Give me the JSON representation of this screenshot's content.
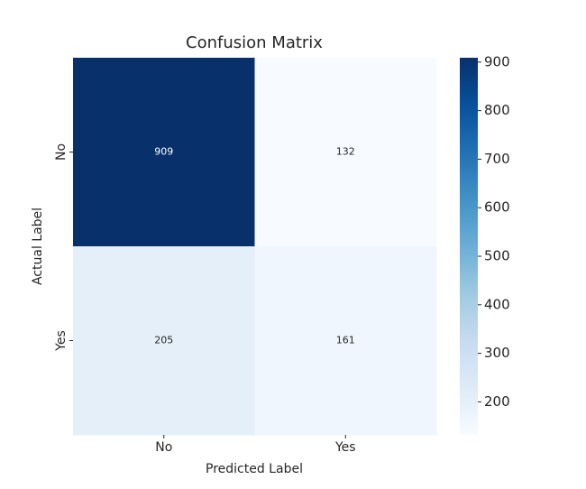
{
  "chart_data": {
    "type": "heatmap",
    "title": "Confusion Matrix",
    "xlabel": "Predicted Label",
    "ylabel": "Actual Label",
    "x_categories": [
      "No",
      "Yes"
    ],
    "y_categories": [
      "No",
      "Yes"
    ],
    "values": [
      [
        909,
        132
      ],
      [
        205,
        161
      ]
    ],
    "colormap": "Blues",
    "colorbar_lim": [
      132,
      909
    ],
    "colorbar_ticks": [
      200,
      300,
      400,
      500,
      600,
      700,
      800,
      900
    ]
  }
}
